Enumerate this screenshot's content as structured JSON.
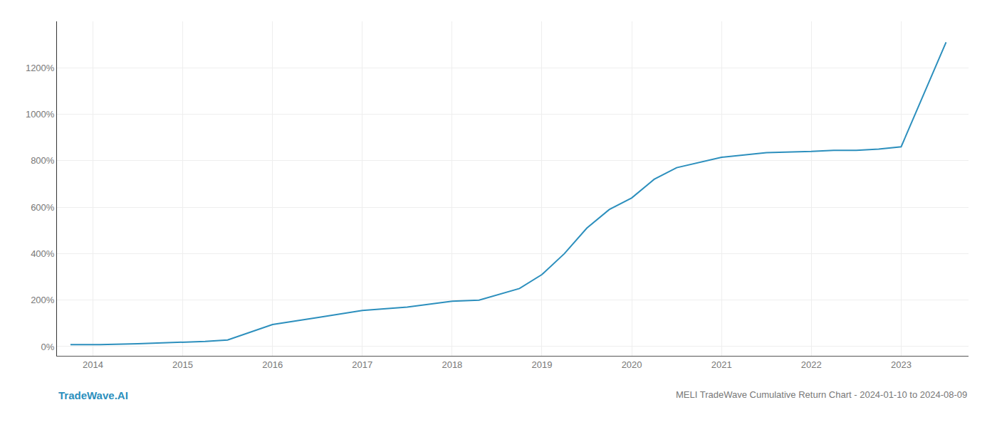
{
  "chart_data": {
    "type": "line",
    "title": "MELI TradeWave Cumulative Return Chart - 2024-01-10 to 2024-08-09",
    "annotations": [
      {
        "text": "TradeWave.AI"
      }
    ],
    "x": [
      2013.75,
      2014.08,
      2014.5,
      2015.0,
      2015.25,
      2015.5,
      2016.0,
      2016.5,
      2017.0,
      2017.5,
      2018.0,
      2018.3,
      2018.75,
      2019.0,
      2019.25,
      2019.5,
      2019.75,
      2020.0,
      2020.25,
      2020.5,
      2021.0,
      2021.5,
      2022.0,
      2022.25,
      2022.5,
      2022.75,
      2023.0,
      2023.5
    ],
    "values": [
      8,
      8,
      12,
      18,
      22,
      28,
      95,
      125,
      155,
      170,
      195,
      200,
      250,
      310,
      400,
      510,
      590,
      640,
      720,
      770,
      815,
      835,
      840,
      845,
      845,
      850,
      860,
      1310
    ],
    "color": "#2c8fbd",
    "xlim": [
      2013.6,
      2023.75
    ],
    "xticks": [
      2014,
      2015,
      2016,
      2017,
      2018,
      2019,
      2020,
      2021,
      2022,
      2023
    ],
    "ylim": [
      -40,
      1400
    ],
    "yticks": [
      {
        "value": 0,
        "label": "0%"
      },
      {
        "value": 200,
        "label": "200%"
      },
      {
        "value": 400,
        "label": "400%"
      },
      {
        "value": 600,
        "label": "600%"
      },
      {
        "value": 800,
        "label": "800%"
      },
      {
        "value": 1000,
        "label": "1000%"
      },
      {
        "value": 1200,
        "label": "1200%"
      }
    ],
    "grid": true
  }
}
